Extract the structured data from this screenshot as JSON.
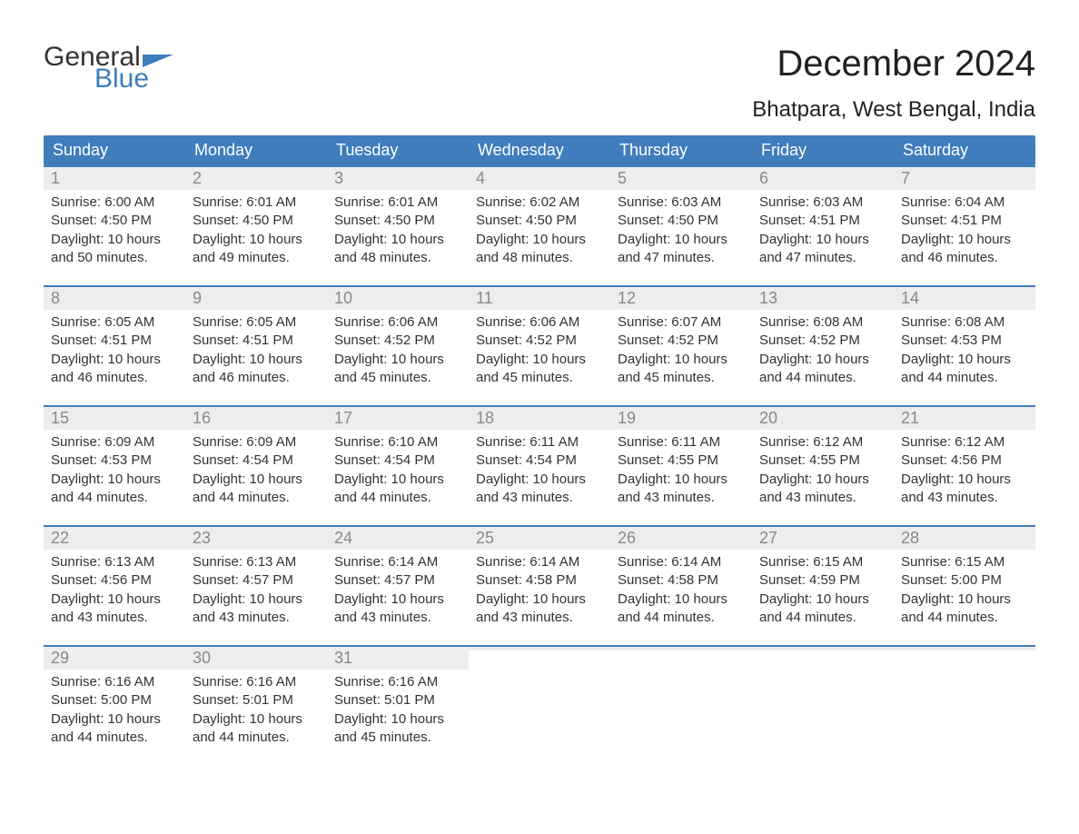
{
  "brand": {
    "top": "General",
    "bottom": "Blue"
  },
  "title": "December 2024",
  "location": "Bhatpara, West Bengal, India",
  "colors": {
    "header_bg": "#3f7dbd",
    "header_text": "#ffffff",
    "daynum_bg": "#ededed",
    "daynum_text": "#8a8a8a",
    "body_text": "#333333",
    "week_border": "#3f7dbd",
    "page_bg": "#ffffff"
  },
  "typography": {
    "title_fontsize": 40,
    "location_fontsize": 24,
    "weekday_fontsize": 18,
    "daynum_fontsize": 18,
    "daydata_fontsize": 15
  },
  "layout": {
    "columns": 7,
    "rows": 5
  },
  "weekdays": [
    "Sunday",
    "Monday",
    "Tuesday",
    "Wednesday",
    "Thursday",
    "Friday",
    "Saturday"
  ],
  "labels": {
    "sunrise": "Sunrise:",
    "sunset": "Sunset:",
    "daylight": "Daylight:"
  },
  "days": [
    {
      "n": "1",
      "sunrise": "6:00 AM",
      "sunset": "4:50 PM",
      "daylight": "10 hours and 50 minutes."
    },
    {
      "n": "2",
      "sunrise": "6:01 AM",
      "sunset": "4:50 PM",
      "daylight": "10 hours and 49 minutes."
    },
    {
      "n": "3",
      "sunrise": "6:01 AM",
      "sunset": "4:50 PM",
      "daylight": "10 hours and 48 minutes."
    },
    {
      "n": "4",
      "sunrise": "6:02 AM",
      "sunset": "4:50 PM",
      "daylight": "10 hours and 48 minutes."
    },
    {
      "n": "5",
      "sunrise": "6:03 AM",
      "sunset": "4:50 PM",
      "daylight": "10 hours and 47 minutes."
    },
    {
      "n": "6",
      "sunrise": "6:03 AM",
      "sunset": "4:51 PM",
      "daylight": "10 hours and 47 minutes."
    },
    {
      "n": "7",
      "sunrise": "6:04 AM",
      "sunset": "4:51 PM",
      "daylight": "10 hours and 46 minutes."
    },
    {
      "n": "8",
      "sunrise": "6:05 AM",
      "sunset": "4:51 PM",
      "daylight": "10 hours and 46 minutes."
    },
    {
      "n": "9",
      "sunrise": "6:05 AM",
      "sunset": "4:51 PM",
      "daylight": "10 hours and 46 minutes."
    },
    {
      "n": "10",
      "sunrise": "6:06 AM",
      "sunset": "4:52 PM",
      "daylight": "10 hours and 45 minutes."
    },
    {
      "n": "11",
      "sunrise": "6:06 AM",
      "sunset": "4:52 PM",
      "daylight": "10 hours and 45 minutes."
    },
    {
      "n": "12",
      "sunrise": "6:07 AM",
      "sunset": "4:52 PM",
      "daylight": "10 hours and 45 minutes."
    },
    {
      "n": "13",
      "sunrise": "6:08 AM",
      "sunset": "4:52 PM",
      "daylight": "10 hours and 44 minutes."
    },
    {
      "n": "14",
      "sunrise": "6:08 AM",
      "sunset": "4:53 PM",
      "daylight": "10 hours and 44 minutes."
    },
    {
      "n": "15",
      "sunrise": "6:09 AM",
      "sunset": "4:53 PM",
      "daylight": "10 hours and 44 minutes."
    },
    {
      "n": "16",
      "sunrise": "6:09 AM",
      "sunset": "4:54 PM",
      "daylight": "10 hours and 44 minutes."
    },
    {
      "n": "17",
      "sunrise": "6:10 AM",
      "sunset": "4:54 PM",
      "daylight": "10 hours and 44 minutes."
    },
    {
      "n": "18",
      "sunrise": "6:11 AM",
      "sunset": "4:54 PM",
      "daylight": "10 hours and 43 minutes."
    },
    {
      "n": "19",
      "sunrise": "6:11 AM",
      "sunset": "4:55 PM",
      "daylight": "10 hours and 43 minutes."
    },
    {
      "n": "20",
      "sunrise": "6:12 AM",
      "sunset": "4:55 PM",
      "daylight": "10 hours and 43 minutes."
    },
    {
      "n": "21",
      "sunrise": "6:12 AM",
      "sunset": "4:56 PM",
      "daylight": "10 hours and 43 minutes."
    },
    {
      "n": "22",
      "sunrise": "6:13 AM",
      "sunset": "4:56 PM",
      "daylight": "10 hours and 43 minutes."
    },
    {
      "n": "23",
      "sunrise": "6:13 AM",
      "sunset": "4:57 PM",
      "daylight": "10 hours and 43 minutes."
    },
    {
      "n": "24",
      "sunrise": "6:14 AM",
      "sunset": "4:57 PM",
      "daylight": "10 hours and 43 minutes."
    },
    {
      "n": "25",
      "sunrise": "6:14 AM",
      "sunset": "4:58 PM",
      "daylight": "10 hours and 43 minutes."
    },
    {
      "n": "26",
      "sunrise": "6:14 AM",
      "sunset": "4:58 PM",
      "daylight": "10 hours and 44 minutes."
    },
    {
      "n": "27",
      "sunrise": "6:15 AM",
      "sunset": "4:59 PM",
      "daylight": "10 hours and 44 minutes."
    },
    {
      "n": "28",
      "sunrise": "6:15 AM",
      "sunset": "5:00 PM",
      "daylight": "10 hours and 44 minutes."
    },
    {
      "n": "29",
      "sunrise": "6:16 AM",
      "sunset": "5:00 PM",
      "daylight": "10 hours and 44 minutes."
    },
    {
      "n": "30",
      "sunrise": "6:16 AM",
      "sunset": "5:01 PM",
      "daylight": "10 hours and 44 minutes."
    },
    {
      "n": "31",
      "sunrise": "6:16 AM",
      "sunset": "5:01 PM",
      "daylight": "10 hours and 45 minutes."
    }
  ]
}
